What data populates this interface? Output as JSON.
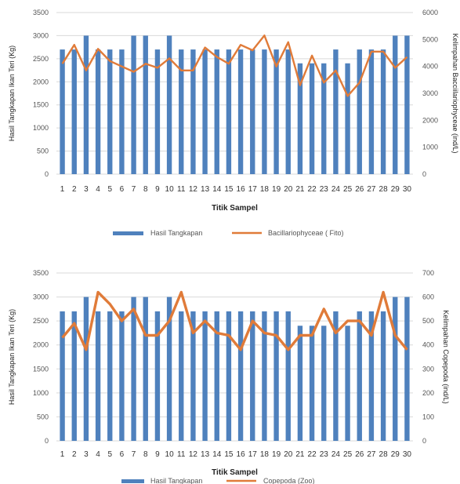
{
  "colors": {
    "bar": "#4f81bd",
    "line": "#e07b39",
    "grid": "#d9d9d9",
    "text": "#555555"
  },
  "chart_data": [
    {
      "type": "bar",
      "categories": [
        "1",
        "2",
        "3",
        "4",
        "5",
        "6",
        "7",
        "8",
        "9",
        "10",
        "11",
        "12",
        "13",
        "14",
        "15",
        "16",
        "17",
        "18",
        "19",
        "20",
        "21",
        "22",
        "23",
        "24",
        "25",
        "26",
        "27",
        "28",
        "29",
        "30"
      ],
      "xlabel": "Titik Sampel",
      "ylabel": "Hasil Tangkapan Ikan Teri (Kg)",
      "y2label": "Kelimpahan Bacciilariophyceae (ind/L)",
      "ylim": [
        0,
        3500
      ],
      "y2lim": [
        0,
        6000
      ],
      "yticks": [
        0,
        500,
        1000,
        1500,
        2000,
        2500,
        3000,
        3500
      ],
      "y2ticks": [
        0,
        1000,
        2000,
        3000,
        4000,
        5000,
        6000
      ],
      "grid": true,
      "legend_position": "bottom",
      "series": [
        {
          "name": "Hasil Tangkapan",
          "type": "bar",
          "axis": "left",
          "values": [
            2700,
            2700,
            3000,
            2700,
            2700,
            2700,
            3000,
            3000,
            2700,
            3000,
            2700,
            2700,
            2700,
            2700,
            2700,
            2700,
            2700,
            2700,
            2700,
            2700,
            2400,
            2400,
            2400,
            2700,
            2400,
            2700,
            2700,
            2700,
            3000,
            3000
          ]
        },
        {
          "name": "Bacillariophyceae ( Fito)",
          "type": "line",
          "axis": "right",
          "values": [
            4100,
            4800,
            3850,
            4650,
            4200,
            4000,
            3800,
            4100,
            3950,
            4300,
            3850,
            3850,
            4700,
            4350,
            4100,
            4800,
            4600,
            5150,
            4000,
            4900,
            3300,
            4400,
            3400,
            3850,
            2900,
            3400,
            4550,
            4550,
            3950,
            4350
          ]
        }
      ]
    },
    {
      "type": "bar",
      "categories": [
        "1",
        "2",
        "3",
        "4",
        "5",
        "6",
        "7",
        "8",
        "9",
        "10",
        "11",
        "12",
        "13",
        "14",
        "15",
        "16",
        "17",
        "18",
        "19",
        "20",
        "21",
        "22",
        "23",
        "24",
        "25",
        "26",
        "27",
        "28",
        "29",
        "30"
      ],
      "xlabel": "Titik Sampel",
      "ylabel": "Hasil Tangkapan Ikan Teri (Kg)",
      "y2label": "Kelimpahan Copepoda (ind/L)",
      "ylim": [
        0,
        3500
      ],
      "y2lim": [
        0,
        700
      ],
      "yticks": [
        0,
        500,
        1000,
        1500,
        2000,
        2500,
        3000,
        3500
      ],
      "y2ticks": [
        0,
        100,
        200,
        300,
        400,
        500,
        600,
        700
      ],
      "grid": true,
      "legend_position": "bottom",
      "series": [
        {
          "name": "Hasil Tangkapan",
          "type": "bar",
          "axis": "left",
          "values": [
            2700,
            2700,
            3000,
            2700,
            2700,
            2700,
            3000,
            3000,
            2700,
            3000,
            2700,
            2700,
            2700,
            2700,
            2700,
            2700,
            2700,
            2700,
            2700,
            2700,
            2400,
            2400,
            2400,
            2700,
            2400,
            2700,
            2700,
            2700,
            3000,
            3000
          ]
        },
        {
          "name": "Copepoda (Zoo)",
          "type": "line",
          "axis": "right",
          "values": [
            430,
            490,
            380,
            620,
            570,
            500,
            550,
            440,
            440,
            500,
            620,
            450,
            500,
            450,
            440,
            380,
            500,
            450,
            440,
            380,
            440,
            440,
            550,
            450,
            500,
            500,
            440,
            620,
            440,
            380
          ]
        }
      ]
    }
  ]
}
